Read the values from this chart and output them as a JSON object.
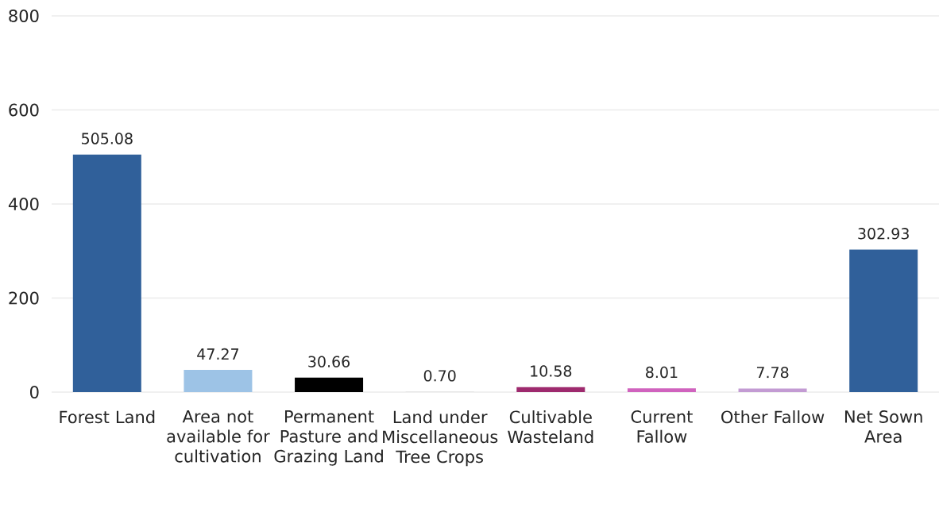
{
  "chart_data": {
    "type": "bar",
    "categories": [
      "Forest Land",
      "Area not available for cultivation",
      "Permanent Pasture and Grazing Land",
      "Land under Miscellaneous Tree Crops",
      "Cultivable Wasteland",
      "Current Fallow",
      "Other Fallow",
      "Net Sown Area"
    ],
    "values": [
      505.08,
      47.27,
      30.66,
      0.7,
      10.58,
      8.01,
      7.78,
      302.93
    ],
    "value_labels": [
      "505.08",
      "47.27",
      "30.66",
      "0.70",
      "10.58",
      "8.01",
      "7.78",
      "302.93"
    ],
    "colors": [
      "#30609a",
      "#9dc3e6",
      "#000000",
      "#d9d9d9",
      "#9e2a6e",
      "#d063be",
      "#c39bd3",
      "#30609a"
    ],
    "ylim": [
      0,
      800
    ],
    "yticks": [
      0,
      200,
      400,
      600,
      800
    ],
    "grid": "y"
  }
}
